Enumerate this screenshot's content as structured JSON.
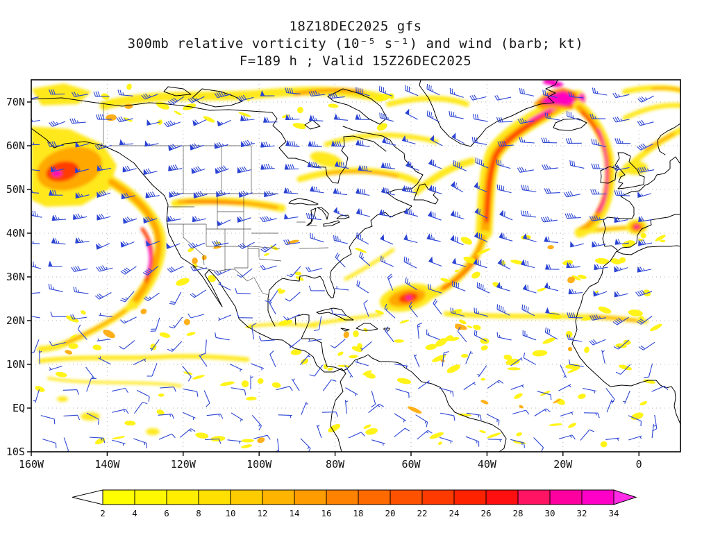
{
  "title": {
    "line1": "18Z18DEC2025 gfs",
    "line2": "300mb relative vorticity (10⁻⁵ s⁻¹) and wind (barb; kt)",
    "line3": "F=189 h ; Valid 15Z26DEC2025"
  },
  "colorbar": {
    "labels": [
      "2",
      "4",
      "6",
      "8",
      "10",
      "12",
      "14",
      "16",
      "18",
      "20",
      "22",
      "24",
      "26",
      "28",
      "30",
      "32",
      "34"
    ],
    "colors": [
      "#FFFF00",
      "#FFF800",
      "#FFEE00",
      "#FFE000",
      "#FFCC00",
      "#FFB400",
      "#FF9C00",
      "#FF8200",
      "#FF6A00",
      "#FF5200",
      "#FF3A00",
      "#FF2200",
      "#FF0F0F",
      "#FF1464",
      "#FF00A0",
      "#FF00C8"
    ],
    "arrow_left_color": "#FFFFFF",
    "arrow_right_color": "#FF2BE6"
  },
  "style": {
    "barb_color": "#2B44D4",
    "grid_color": "#999999",
    "coast_color": "#000000",
    "vorticity_yellow": "#FFE81A",
    "vorticity_orange": "#FFA800",
    "vorticity_red": "#FF3C00",
    "vorticity_magenta": "#FF00C0"
  },
  "chart_data": {
    "type": "heatmap",
    "title": "18Z18DEC2025 gfs",
    "field": "300mb relative vorticity",
    "units": "10⁻⁵ s⁻¹",
    "overlay": "wind barbs (kt)",
    "model_run": "18Z18DEC2025",
    "forecast_hour": "F=189 h",
    "valid_time": "15Z26DEC2025",
    "projection": "cylindrical lat-lon",
    "lon_range": [
      -160,
      11
    ],
    "lat_range": [
      -10,
      75
    ],
    "grid": true,
    "x_ticks": {
      "labels": [
        "160W",
        "140W",
        "120W",
        "100W",
        "80W",
        "60W",
        "40W",
        "20W",
        "0"
      ],
      "lons": [
        -160,
        -140,
        -120,
        -100,
        -80,
        -60,
        -40,
        -20,
        0
      ]
    },
    "y_ticks": {
      "labels": [
        "70N",
        "60N",
        "50N",
        "40N",
        "30N",
        "20N",
        "10N",
        "EQ",
        "10S"
      ],
      "lats": [
        70,
        60,
        50,
        40,
        30,
        20,
        10,
        0,
        -10
      ]
    },
    "levels": [
      2,
      4,
      6,
      8,
      10,
      12,
      14,
      16,
      18,
      20,
      22,
      24,
      26,
      28,
      30,
      32,
      34
    ],
    "palette": [
      "#FFFF00",
      "#FFF800",
      "#FFEE00",
      "#FFE000",
      "#FFCC00",
      "#FFB400",
      "#FF9C00",
      "#FF8200",
      "#FF6A00",
      "#FF5200",
      "#FF3A00",
      "#FF2200",
      "#FF0F0F",
      "#FF1464",
      "#FF00A0",
      "#FF00C8"
    ],
    "features": [
      "Broad cyclonic vorticity maximum over the Gulf of Alaska (values 8-20)",
      "Elongated vorticity streak along the US West Coast curving to a >30 maximum near 28N 130W off Baja California",
      "Zonal vorticity band along the US-Canada border near 46-48N from 122W to 95W",
      "Vorticity streaks over Quebec and the Hudson Bay region",
      "Intense curved vorticity band (>34) from the Labrador Sea across southern Greenland to Iceland",
      "Long arc of high vorticity from Iceland southward near 20W ending at a >26 maximum west of Iberia near 38N 10W",
      "Subtropical Atlantic maximum (>24) near 23N 64W with tail extending northeast toward 40N 42W",
      "Weak speckled vorticity (2-6) across the tropics and along the ITCZ near 8-12N",
      "Band of 2-8 vorticity along 20-22N stretching east to West Africa",
      "Strong westerly jet-stream wind barbs (50-75 kt) in midlatitudes; light easterlies in the tropics"
    ]
  }
}
